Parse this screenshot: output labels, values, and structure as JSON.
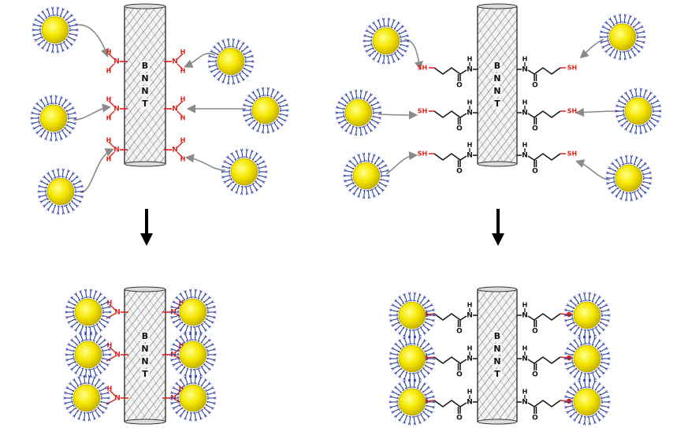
{
  "tube_label": [
    "B",
    "N",
    "N",
    "T"
  ],
  "atoms": {
    "hydrogen": "H",
    "nitrogen": "N",
    "oxygen": "O",
    "thiol": "SH"
  },
  "colors": {
    "amine_red": "#e0211b",
    "linker_black": "#111111",
    "nanoparticle_core": "#f5e600",
    "nanoparticle_shell": "#2b3ea8",
    "nanotube_hatch": "#555555",
    "arrow_grey": "#8a8a8a"
  },
  "panels": [
    {
      "id": "amine-before",
      "chemistry": "amine",
      "state": "unbound"
    },
    {
      "id": "thiol-before",
      "chemistry": "thiol",
      "state": "unbound"
    },
    {
      "id": "amine-after",
      "chemistry": "amine",
      "state": "bound"
    },
    {
      "id": "thiol-after",
      "chemistry": "thiol",
      "state": "bound"
    }
  ],
  "icons": [
    "nanotube-icon",
    "gold-nanoparticle-icon",
    "reaction-arrow-icon",
    "attachment-arrow-icon"
  ]
}
